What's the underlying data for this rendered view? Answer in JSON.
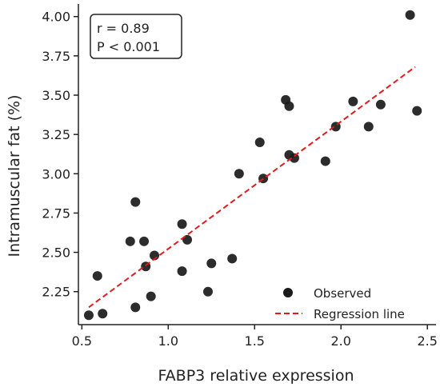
{
  "chart_data": {
    "type": "scatter",
    "title": "",
    "xlabel": "FABP3 relative expression",
    "ylabel": "Intramuscular fat (%)",
    "xlim": [
      0.48,
      2.55
    ],
    "ylim": [
      2.04,
      4.08
    ],
    "x_ticks": [
      0.5,
      1.0,
      1.5,
      2.0,
      2.5
    ],
    "x_tick_labels": [
      "0.5",
      "1.0",
      "1.5",
      "2.0",
      "2.5"
    ],
    "y_ticks": [
      2.25,
      2.5,
      2.75,
      3.0,
      3.25,
      3.5,
      3.75,
      4.0
    ],
    "y_tick_labels": [
      "2.25",
      "2.50",
      "2.75",
      "3.00",
      "3.25",
      "3.50",
      "3.75",
      "4.00"
    ],
    "grid": false,
    "stats_box": {
      "line1": "r = 0.89",
      "line2": "P < 0.001"
    },
    "legend": {
      "position": "lower-right",
      "observed_label": "Observed",
      "regression_label": "Regression line"
    },
    "marker_color": "#1a1a1a",
    "line_color": "#e41a1c",
    "regression": {
      "x": [
        0.54,
        2.43
      ],
      "y": [
        2.15,
        3.68
      ]
    },
    "series": [
      {
        "name": "Observed",
        "points": [
          {
            "x": 0.54,
            "y": 2.1
          },
          {
            "x": 0.59,
            "y": 2.35
          },
          {
            "x": 0.62,
            "y": 2.11
          },
          {
            "x": 0.78,
            "y": 2.57
          },
          {
            "x": 0.81,
            "y": 2.82
          },
          {
            "x": 0.81,
            "y": 2.15
          },
          {
            "x": 0.86,
            "y": 2.57
          },
          {
            "x": 0.87,
            "y": 2.41
          },
          {
            "x": 0.9,
            "y": 2.22
          },
          {
            "x": 0.92,
            "y": 2.48
          },
          {
            "x": 1.08,
            "y": 2.68
          },
          {
            "x": 1.08,
            "y": 2.38
          },
          {
            "x": 1.11,
            "y": 2.58
          },
          {
            "x": 1.23,
            "y": 2.25
          },
          {
            "x": 1.25,
            "y": 2.43
          },
          {
            "x": 1.37,
            "y": 2.46
          },
          {
            "x": 1.41,
            "y": 3.0
          },
          {
            "x": 1.53,
            "y": 3.2
          },
          {
            "x": 1.55,
            "y": 2.97
          },
          {
            "x": 1.68,
            "y": 3.47
          },
          {
            "x": 1.7,
            "y": 3.43
          },
          {
            "x": 1.7,
            "y": 3.12
          },
          {
            "x": 1.73,
            "y": 3.1
          },
          {
            "x": 1.91,
            "y": 3.08
          },
          {
            "x": 1.97,
            "y": 3.3
          },
          {
            "x": 2.07,
            "y": 3.46
          },
          {
            "x": 2.16,
            "y": 3.3
          },
          {
            "x": 2.23,
            "y": 3.44
          },
          {
            "x": 2.4,
            "y": 4.01
          },
          {
            "x": 2.44,
            "y": 3.4
          }
        ]
      }
    ]
  }
}
